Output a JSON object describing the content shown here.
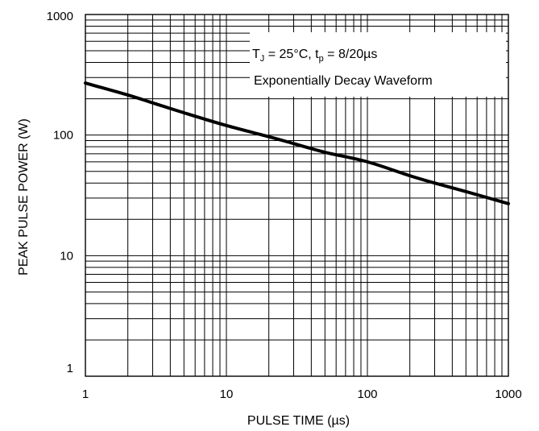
{
  "chart_data": {
    "type": "line",
    "x_scale": "log",
    "y_scale": "log",
    "xlim": [
      1,
      1000
    ],
    "ylim": [
      1,
      1000
    ],
    "xlabel": "PULSE TIME (µs)",
    "ylabel": "PEAK PULSE POWER (W)",
    "x_tick_labels": [
      "1",
      "10",
      "100",
      "1000"
    ],
    "y_tick_labels": [
      "1",
      "10",
      "100",
      "1000"
    ],
    "x_ticks": [
      1,
      10,
      100,
      1000
    ],
    "y_ticks": [
      1,
      10,
      100,
      1000
    ],
    "grid": true,
    "annotation": {
      "line1": {
        "t": "T",
        "j": "J",
        "eq": " = 25°C, t",
        "p": "p",
        "rest": " = 8/20µs"
      },
      "line2": "Exponentially Decay Waveform"
    },
    "series": [
      {
        "x": [
          1,
          2,
          3,
          5,
          10,
          20,
          30,
          50,
          100,
          200,
          300,
          500,
          1000
        ],
        "y": [
          270,
          215,
          185,
          153,
          120,
          97,
          85,
          72,
          60,
          46,
          40,
          34,
          27
        ],
        "color": "#000000"
      }
    ]
  }
}
